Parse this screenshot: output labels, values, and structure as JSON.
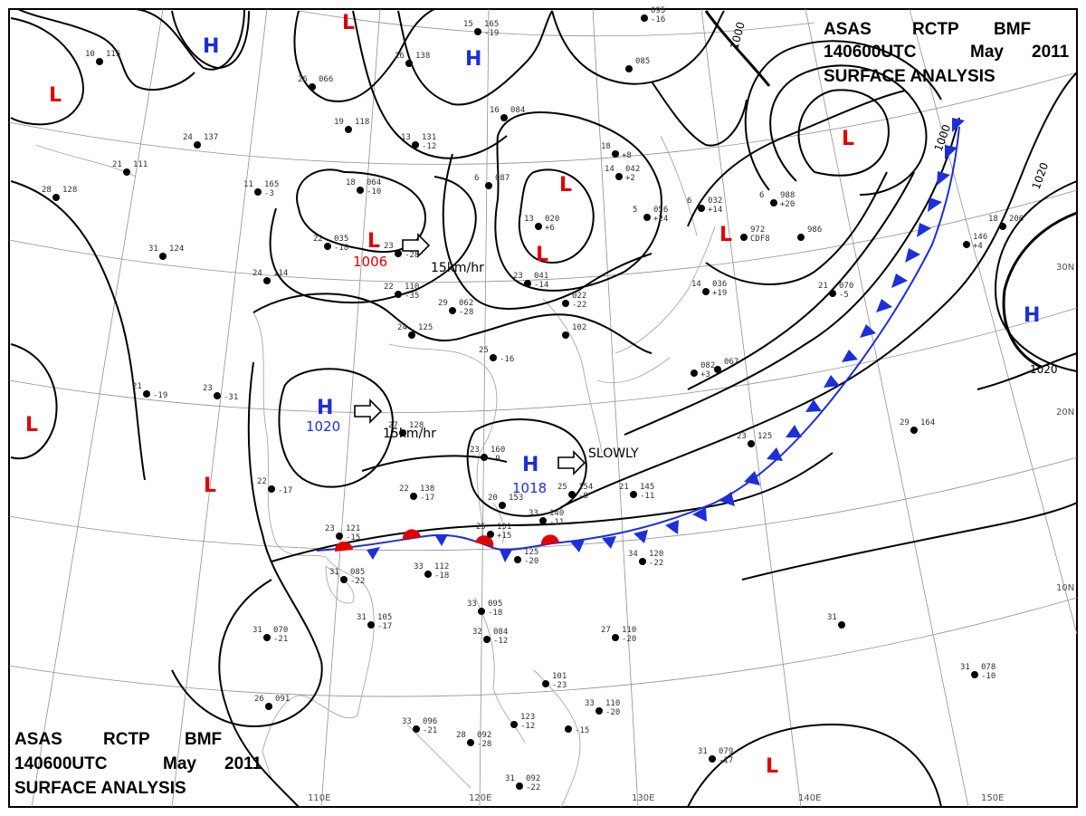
{
  "header_top": {
    "line1": [
      "ASAS",
      "RCTP",
      "BMF"
    ],
    "line2": [
      "140600UTC",
      "May",
      "2011"
    ],
    "line3": "SURFACE  ANALYSIS"
  },
  "header_bottom": {
    "line1": [
      "ASAS",
      "RCTP",
      "BMF"
    ],
    "line2": [
      "140600UTC",
      "May",
      "2011"
    ],
    "line3": "SURFACE  ANALYSIS"
  },
  "colors": {
    "high": "#1c2fd8",
    "low": "#e00000",
    "front_cold": "#1c2fd8",
    "front_warm": "#e00000"
  },
  "grid_labels": {
    "lon": [
      "110E",
      "120E",
      "130E",
      "140E",
      "150E"
    ],
    "lat": [
      "30N",
      "20N",
      "10N"
    ]
  },
  "isobar_labels": [
    "1000",
    "1000",
    "1020",
    "1020"
  ],
  "pressure_systems": [
    {
      "type": "H",
      "label": "H",
      "pressure": ""
    },
    {
      "type": "H",
      "label": "H",
      "pressure": ""
    },
    {
      "type": "H",
      "label": "H",
      "pressure": "1020"
    },
    {
      "type": "H",
      "label": "H",
      "pressure": "1018"
    },
    {
      "type": "H",
      "label": "H",
      "pressure": ""
    },
    {
      "type": "L",
      "label": "L",
      "pressure": ""
    },
    {
      "type": "L",
      "label": "L",
      "pressure": ""
    },
    {
      "type": "L",
      "label": "L",
      "pressure": "1006"
    },
    {
      "type": "L",
      "label": "L",
      "pressure": ""
    },
    {
      "type": "L",
      "label": "L",
      "pressure": ""
    },
    {
      "type": "L",
      "label": "L",
      "pressure": ""
    },
    {
      "type": "L",
      "label": "L",
      "pressure": ""
    },
    {
      "type": "L",
      "label": "L",
      "pressure": ""
    },
    {
      "type": "L",
      "label": "L",
      "pressure": ""
    },
    {
      "type": "L",
      "label": "L",
      "pressure": ""
    }
  ],
  "motion_labels": [
    "15km/hr",
    "15km/hr",
    "SLOWLY"
  ],
  "stations": [
    {
      "temp": "10",
      "press": "115"
    },
    {
      "temp": "15",
      "press": "165",
      "tend": "-19"
    },
    {
      "temp": "26",
      "press": "066"
    },
    {
      "temp": "16",
      "press": "138"
    },
    {
      "temp": "",
      "press": "095",
      "tend": "-16"
    },
    {
      "temp": "",
      "press": "085"
    },
    {
      "temp": "24",
      "press": "137"
    },
    {
      "temp": "19",
      "press": "118"
    },
    {
      "temp": "13",
      "press": "131",
      "tend": "-12"
    },
    {
      "temp": "16",
      "press": "084"
    },
    {
      "temp": "18",
      "press": "",
      "tend": "+8"
    },
    {
      "temp": "21",
      "press": "111"
    },
    {
      "temp": "28",
      "press": "128"
    },
    {
      "temp": "11",
      "press": "165",
      "tend": "-3"
    },
    {
      "temp": "18",
      "press": "064",
      "tend": "-10"
    },
    {
      "temp": "6",
      "press": "087"
    },
    {
      "temp": "14",
      "press": "042",
      "tend": "+2"
    },
    {
      "temp": "22",
      "press": "035",
      "tend": "-18"
    },
    {
      "temp": "23",
      "press": "",
      "tend": "-28"
    },
    {
      "temp": "13",
      "press": "020",
      "tend": "+6"
    },
    {
      "temp": "5",
      "press": "056",
      "tend": "+24"
    },
    {
      "temp": "6",
      "press": "032",
      "tend": "+14"
    },
    {
      "temp": "6",
      "press": "988",
      "tend": "+20"
    },
    {
      "temp": "",
      "press": "986"
    },
    {
      "temp": "",
      "press": "972",
      "tend": "CDF8"
    },
    {
      "temp": "31",
      "press": "124"
    },
    {
      "temp": "24",
      "press": "114"
    },
    {
      "temp": "22",
      "press": "110",
      "tend": "-35"
    },
    {
      "temp": "29",
      "press": "062",
      "tend": "-28"
    },
    {
      "temp": "23",
      "press": "041",
      "tend": "-14"
    },
    {
      "temp": "",
      "press": "022",
      "tend": "-22"
    },
    {
      "temp": "14",
      "press": "036",
      "tend": "+19"
    },
    {
      "temp": "21",
      "press": "070",
      "tend": "-5"
    },
    {
      "temp": "24",
      "press": "125"
    },
    {
      "temp": "25",
      "press": "",
      "tend": "-16"
    },
    {
      "temp": "",
      "press": "102"
    },
    {
      "temp": "",
      "press": "082",
      "tend": "+3"
    },
    {
      "temp": "",
      "press": "067"
    },
    {
      "temp": "18",
      "press": "200"
    },
    {
      "temp": "",
      "press": "146",
      "tend": "+4"
    },
    {
      "temp": "21",
      "press": "",
      "tend": "-19"
    },
    {
      "temp": "23",
      "press": "",
      "tend": "-31"
    },
    {
      "temp": "27",
      "press": "128"
    },
    {
      "temp": "23",
      "press": "160",
      "tend": "-9"
    },
    {
      "temp": "22",
      "press": "",
      "tend": "-17"
    },
    {
      "temp": "22",
      "press": "138",
      "tend": "-17"
    },
    {
      "temp": "20",
      "press": "153"
    },
    {
      "temp": "25",
      "press": "154",
      "tend": "-8"
    },
    {
      "temp": "21",
      "press": "145",
      "tend": "-11"
    },
    {
      "temp": "23",
      "press": "125"
    },
    {
      "temp": "29",
      "press": "164"
    },
    {
      "temp": "23",
      "press": "121",
      "tend": "-15"
    },
    {
      "temp": "25",
      "press": "131",
      "tend": "+15"
    },
    {
      "temp": "33",
      "press": "140",
      "tend": "-11"
    },
    {
      "temp": "",
      "press": "125",
      "tend": "-20"
    },
    {
      "temp": "33",
      "press": "112",
      "tend": "-18"
    },
    {
      "temp": "34",
      "press": "120",
      "tend": "-22"
    },
    {
      "temp": "31",
      "press": "085",
      "tend": "-22"
    },
    {
      "temp": "33",
      "press": "095",
      "tend": "-18"
    },
    {
      "temp": "31",
      "press": "105",
      "tend": "-17"
    },
    {
      "temp": "31",
      "press": "070",
      "tend": "-21"
    },
    {
      "temp": "32",
      "press": "084",
      "tend": "-12"
    },
    {
      "temp": "27",
      "press": "110",
      "tend": "-20"
    },
    {
      "temp": "31",
      "press": ""
    },
    {
      "temp": "31",
      "press": "078",
      "tend": "-10"
    },
    {
      "temp": "26",
      "press": "091"
    },
    {
      "temp": "33",
      "press": "096",
      "tend": "-21"
    },
    {
      "temp": "28",
      "press": "092",
      "tend": "-28"
    },
    {
      "temp": "",
      "press": "123",
      "tend": "-12"
    },
    {
      "temp": "",
      "press": "101",
      "tend": "-23"
    },
    {
      "temp": "33",
      "press": "110",
      "tend": "-20"
    },
    {
      "temp": "",
      "press": "",
      "tend": "-15"
    },
    {
      "temp": "31",
      "press": "092",
      "tend": "-22"
    },
    {
      "temp": "31",
      "press": "079",
      "tend": "-17"
    }
  ]
}
